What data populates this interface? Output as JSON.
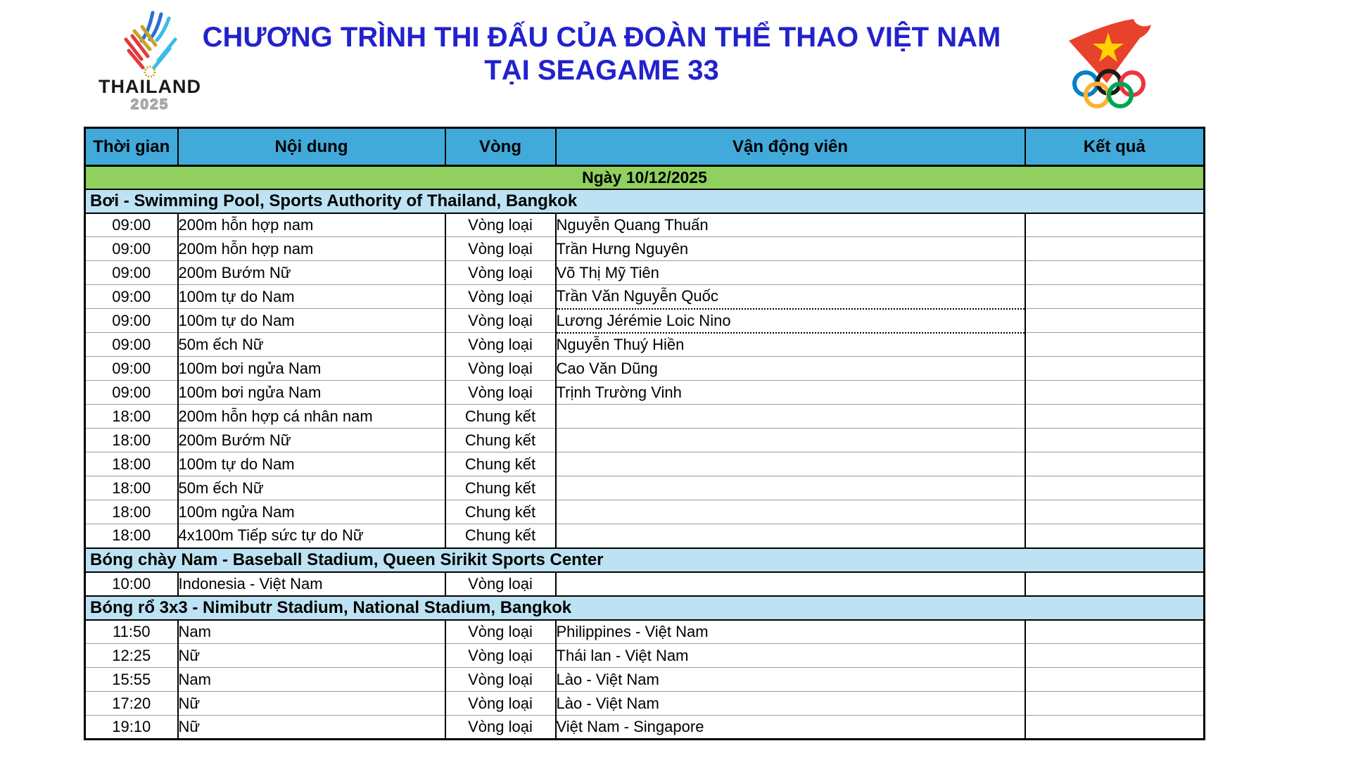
{
  "masthead": {
    "title_line1": "CHƯƠNG TRÌNH THI ĐẤU CỦA ĐOÀN THỂ THAO VIỆT NAM",
    "title_line2": "TẠI SEAGAME 33",
    "left_logo": {
      "icon": "thailand-2025-emblem-icon",
      "name": "THAILAND",
      "year": "2025"
    },
    "right_logo": {
      "icon": "vietnam-olympic-flag-rings-icon"
    }
  },
  "table": {
    "columns": [
      "Thời gian",
      "Nội dung",
      "Vòng",
      "Vận động viên",
      "Kết quả"
    ],
    "date_banner": "Ngày 10/12/2025",
    "sections": [
      {
        "venue": "Bơi - Swimming Pool, Sports Authority of Thailand, Bangkok",
        "rows": [
          {
            "time": "09:00",
            "event": "200m hỗn hợp nam",
            "round": "Vòng loại",
            "athlete": "Nguyễn Quang Thuấn",
            "result": ""
          },
          {
            "time": "09:00",
            "event": "200m hỗn hợp nam",
            "round": "Vòng loại",
            "athlete": "Trần Hưng Nguyên",
            "result": ""
          },
          {
            "time": "09:00",
            "event": "200m Bướm Nữ",
            "round": "Vòng loại",
            "athlete": "Võ Thị Mỹ Tiên",
            "result": ""
          },
          {
            "time": "09:00",
            "event": "100m tự do Nam",
            "round": "Vòng loại",
            "athlete": "Trần Văn Nguyễn Quốc",
            "result": "",
            "dotted": true
          },
          {
            "time": "09:00",
            "event": "100m tự do Nam",
            "round": "Vòng loại",
            "athlete": "Lương Jérémie Loic Nino",
            "result": "",
            "dotted": true
          },
          {
            "time": "09:00",
            "event": "50m ếch Nữ",
            "round": "Vòng loại",
            "athlete": "Nguyễn Thuý Hiền",
            "result": ""
          },
          {
            "time": "09:00",
            "event": "100m bơi ngửa Nam",
            "round": "Vòng loại",
            "athlete": "Cao Văn Dũng",
            "result": ""
          },
          {
            "time": "09:00",
            "event": "100m bơi ngửa Nam",
            "round": "Vòng loại",
            "athlete": "Trịnh Trường Vinh",
            "result": ""
          },
          {
            "time": "18:00",
            "event": "200m hỗn hợp cá nhân nam",
            "round": "Chung kết",
            "athlete": "",
            "result": ""
          },
          {
            "time": "18:00",
            "event": "200m Bướm Nữ",
            "round": "Chung kết",
            "athlete": "",
            "result": ""
          },
          {
            "time": "18:00",
            "event": "100m tự do Nam",
            "round": "Chung kết",
            "athlete": "",
            "result": ""
          },
          {
            "time": "18:00",
            "event": "50m ếch Nữ",
            "round": "Chung kết",
            "athlete": "",
            "result": ""
          },
          {
            "time": "18:00",
            "event": "100m ngửa Nam",
            "round": "Chung kết",
            "athlete": "",
            "result": ""
          },
          {
            "time": "18:00",
            "event": "4x100m Tiếp sức tự do Nữ",
            "round": "Chung kết",
            "athlete": "",
            "result": ""
          }
        ]
      },
      {
        "venue": "Bóng chày Nam - Baseball Stadium, Queen Sirikit Sports Center",
        "rows": [
          {
            "time": "10:00",
            "event": "Indonesia - Việt Nam",
            "round": "Vòng loại",
            "athlete": "",
            "result": ""
          }
        ]
      },
      {
        "venue": "Bóng rổ 3x3 - Nimibutr Stadium, National Stadium, Bangkok",
        "rows": [
          {
            "time": "11:50",
            "event": "Nam",
            "round": "Vòng loại",
            "athlete": "Philippines - Việt Nam",
            "result": ""
          },
          {
            "time": "12:25",
            "event": "Nữ",
            "round": "Vòng loại",
            "athlete": "Thái lan - Việt Nam",
            "result": ""
          },
          {
            "time": "15:55",
            "event": "Nam",
            "round": "Vòng loại",
            "athlete": "Lào - Việt Nam",
            "result": ""
          },
          {
            "time": "17:20",
            "event": "Nữ",
            "round": "Vòng loại",
            "athlete": "Lào - Việt Nam",
            "result": ""
          },
          {
            "time": "19:10",
            "event": "Nữ",
            "round": "Vòng loại",
            "athlete": "Việt Nam - Singapore",
            "result": ""
          }
        ]
      }
    ]
  },
  "colors": {
    "title_text": "#2222cc",
    "header_bg": "#41aadb",
    "date_bg": "#8fd05f",
    "section_bg": "#bde2f3",
    "grid_line": "#9c9c9c",
    "border": "#000000",
    "flag_red": "#e8412c",
    "star_yellow": "#ffd400",
    "ring_blue": "#0081c8",
    "ring_black": "#1a1a1a",
    "ring_red": "#ee3340",
    "ring_yellow": "#fcb131",
    "ring_green": "#00a651"
  }
}
